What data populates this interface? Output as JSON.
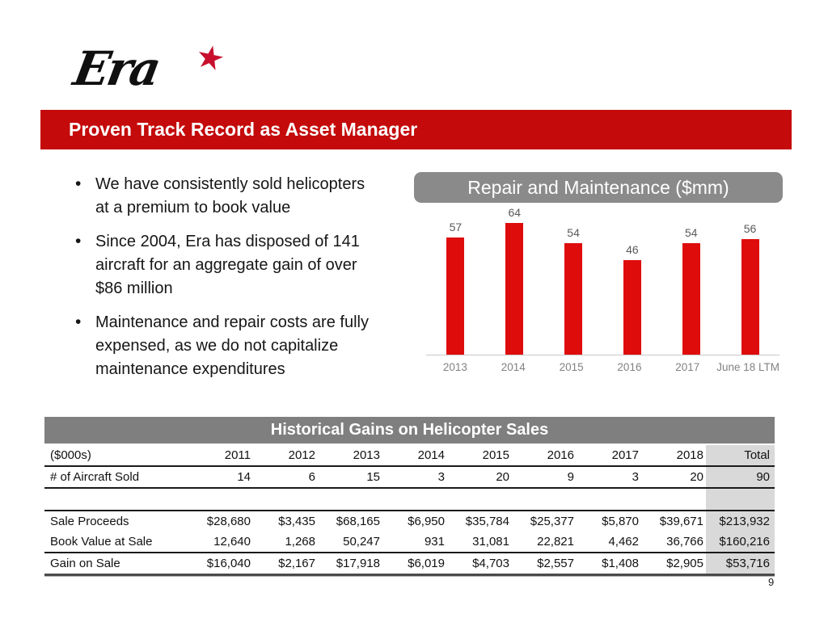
{
  "logo": {
    "text": "Era",
    "star_icon_color": "#C8102E"
  },
  "header": {
    "title": "Proven Track Record as Asset Manager",
    "banner_color": "#C40A0A"
  },
  "bullets": [
    "We have consistently sold helicopters at a premium to book value",
    "Since 2004, Era has disposed of 141 aircraft for an aggregate gain of over $86 million",
    "Maintenance and repair costs are fully expensed, as we do not capitalize maintenance expenditures"
  ],
  "chart_data": {
    "type": "bar",
    "title": "Repair and Maintenance ($mm)",
    "categories": [
      "2013",
      "2014",
      "2015",
      "2016",
      "2017",
      "June 18 LTM"
    ],
    "values": [
      57,
      64,
      54,
      46,
      54,
      56
    ],
    "ylim": [
      0,
      70
    ],
    "bar_color": "#DF0C0C",
    "data_labels": true,
    "gridlines": false,
    "legend": "none"
  },
  "table": {
    "title": "Historical Gains on Helicopter Sales",
    "columns": [
      "($000s)",
      "2011",
      "2012",
      "2013",
      "2014",
      "2015",
      "2016",
      "2017",
      "2018",
      "Total"
    ],
    "rows": [
      {
        "label": "# of Aircraft Sold",
        "values": [
          "14",
          "6",
          "15",
          "3",
          "20",
          "9",
          "3",
          "20",
          "90"
        ]
      },
      {
        "label": "Sale Proceeds",
        "values": [
          "$28,680",
          "$3,435",
          "$68,165",
          "$6,950",
          "$35,784",
          "$25,377",
          "$5,870",
          "$39,671",
          "$213,932"
        ]
      },
      {
        "label": "Book Value at Sale",
        "values": [
          "12,640",
          "1,268",
          "50,247",
          "931",
          "31,081",
          "22,821",
          "4,462",
          "36,766",
          "$160,216"
        ]
      },
      {
        "label": "Gain on Sale",
        "values": [
          "$16,040",
          "$2,167",
          "$17,918",
          "$6,019",
          "$4,703",
          "$2,557",
          "$1,408",
          "$2,905",
          "$53,716"
        ]
      }
    ]
  },
  "footer": {
    "page_number": "9"
  },
  "colors": {
    "banner_red": "#C40A0A",
    "bar_red": "#DF0C0C",
    "chart_header_gray": "#8A8A8A",
    "table_header_gray": "#7F7F7F",
    "total_column_gray": "#D9D9D9"
  }
}
